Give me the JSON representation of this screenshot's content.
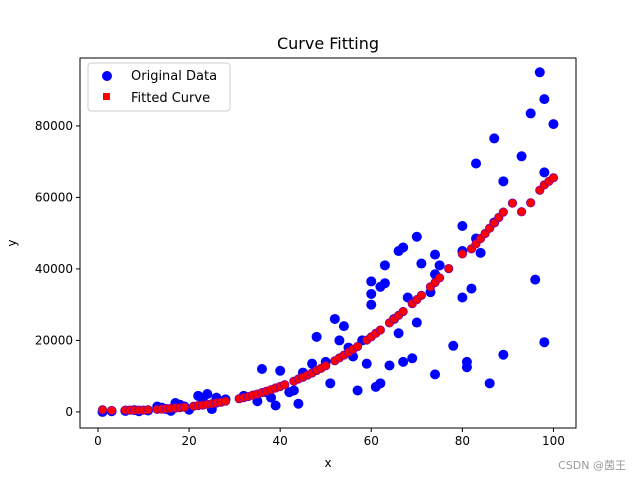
{
  "chart_data": {
    "type": "scatter",
    "title": "Curve Fitting",
    "xlabel": "x",
    "ylabel": "y",
    "xlim": [
      -3.95,
      104.95
    ],
    "ylim": [
      -4500,
      99000
    ],
    "xticks": [
      0,
      20,
      40,
      60,
      80,
      100
    ],
    "xtick_labels": [
      "0",
      "20",
      "40",
      "60",
      "80",
      "100"
    ],
    "yticks": [
      0,
      20000,
      40000,
      60000,
      80000
    ],
    "ytick_labels": [
      "0",
      "20000",
      "40000",
      "60000",
      "80000"
    ],
    "grid": false,
    "legend_position": "top-left",
    "series": [
      {
        "name": "Original Data",
        "marker": "circle",
        "color": "#0000ff",
        "points": [
          [
            1,
            0
          ],
          [
            3,
            200
          ],
          [
            6,
            300
          ],
          [
            8,
            500
          ],
          [
            9,
            200
          ],
          [
            11,
            400
          ],
          [
            13,
            1500
          ],
          [
            14,
            1200
          ],
          [
            15,
            800
          ],
          [
            16,
            300
          ],
          [
            17,
            2500
          ],
          [
            18,
            2000
          ],
          [
            19,
            1500
          ],
          [
            20,
            600
          ],
          [
            22,
            4500
          ],
          [
            23,
            3500
          ],
          [
            24,
            5000
          ],
          [
            25,
            800
          ],
          [
            26,
            4000
          ],
          [
            27,
            3000
          ],
          [
            28,
            3500
          ],
          [
            32,
            4500
          ],
          [
            35,
            3000
          ],
          [
            36,
            12000
          ],
          [
            37,
            5500
          ],
          [
            38,
            4000
          ],
          [
            39,
            1800
          ],
          [
            40,
            11500
          ],
          [
            42,
            5500
          ],
          [
            43,
            6000
          ],
          [
            44,
            2300
          ],
          [
            45,
            11000
          ],
          [
            47,
            13500
          ],
          [
            48,
            21000
          ],
          [
            50,
            14000
          ],
          [
            51,
            8000
          ],
          [
            52,
            26000
          ],
          [
            53,
            20000
          ],
          [
            54,
            24000
          ],
          [
            55,
            18000
          ],
          [
            56,
            15500
          ],
          [
            57,
            6000
          ],
          [
            58,
            20000
          ],
          [
            59,
            13500
          ],
          [
            60,
            36500
          ],
          [
            60,
            30000
          ],
          [
            60,
            33000
          ],
          [
            61,
            7000
          ],
          [
            62,
            8000
          ],
          [
            62,
            35000
          ],
          [
            63,
            36000
          ],
          [
            63,
            41000
          ],
          [
            64,
            13000
          ],
          [
            65,
            26000
          ],
          [
            66,
            22000
          ],
          [
            66,
            45000
          ],
          [
            67,
            14000
          ],
          [
            67,
            46000
          ],
          [
            68,
            32000
          ],
          [
            69,
            15000
          ],
          [
            70,
            49000
          ],
          [
            70,
            25000
          ],
          [
            71,
            41500
          ],
          [
            73,
            33500
          ],
          [
            74,
            10500
          ],
          [
            74,
            38500
          ],
          [
            74,
            44000
          ],
          [
            75,
            41000
          ],
          [
            78,
            18500
          ],
          [
            80,
            32000
          ],
          [
            80,
            45000
          ],
          [
            80,
            52000
          ],
          [
            81,
            14000
          ],
          [
            81,
            12500
          ],
          [
            82,
            34500
          ],
          [
            83,
            48500
          ],
          [
            83,
            69500
          ],
          [
            84,
            44500
          ],
          [
            86,
            8000
          ],
          [
            87,
            53000
          ],
          [
            87,
            76500
          ],
          [
            89,
            64500
          ],
          [
            89,
            16000
          ],
          [
            93,
            71500
          ],
          [
            95,
            83500
          ],
          [
            96,
            37000
          ],
          [
            97,
            95000
          ],
          [
            98,
            67000
          ],
          [
            98,
            87500
          ],
          [
            98,
            19500
          ],
          [
            100,
            80500
          ]
        ]
      },
      {
        "name": "Fitted Curve",
        "marker": "square",
        "color": "#ff0000",
        "edge_color": "#7a00a0",
        "points": [
          [
            1,
            600
          ],
          [
            3,
            400
          ],
          [
            6,
            500
          ],
          [
            7,
            500
          ],
          [
            8,
            500
          ],
          [
            9,
            500
          ],
          [
            10,
            500
          ],
          [
            11,
            600
          ],
          [
            13,
            700
          ],
          [
            14,
            800
          ],
          [
            15,
            900
          ],
          [
            16,
            1000
          ],
          [
            17,
            1100
          ],
          [
            18,
            1200
          ],
          [
            19,
            1300
          ],
          [
            21,
            1600
          ],
          [
            22,
            1800
          ],
          [
            23,
            1900
          ],
          [
            24,
            2100
          ],
          [
            25,
            2300
          ],
          [
            26,
            2500
          ],
          [
            27,
            2700
          ],
          [
            28,
            3000
          ],
          [
            31,
            3700
          ],
          [
            32,
            4000
          ],
          [
            33,
            4300
          ],
          [
            34,
            4700
          ],
          [
            35,
            5000
          ],
          [
            36,
            5400
          ],
          [
            37,
            5800
          ],
          [
            38,
            6200
          ],
          [
            39,
            6700
          ],
          [
            40,
            7100
          ],
          [
            41,
            7600
          ],
          [
            43,
            8600
          ],
          [
            44,
            9200
          ],
          [
            45,
            9700
          ],
          [
            46,
            10300
          ],
          [
            47,
            10900
          ],
          [
            48,
            11600
          ],
          [
            49,
            12200
          ],
          [
            50,
            12900
          ],
          [
            52,
            14300
          ],
          [
            53,
            15100
          ],
          [
            54,
            15900
          ],
          [
            55,
            16700
          ],
          [
            56,
            17500
          ],
          [
            57,
            18300
          ],
          [
            59,
            20100
          ],
          [
            60,
            21000
          ],
          [
            61,
            22000
          ],
          [
            62,
            22900
          ],
          [
            64,
            24900
          ],
          [
            65,
            26000
          ],
          [
            66,
            27000
          ],
          [
            67,
            28100
          ],
          [
            69,
            30300
          ],
          [
            70,
            31400
          ],
          [
            71,
            32600
          ],
          [
            73,
            35000
          ],
          [
            74,
            36200
          ],
          [
            75,
            37500
          ],
          [
            77,
            40100
          ],
          [
            80,
            44200
          ],
          [
            82,
            45600
          ],
          [
            83,
            47000
          ],
          [
            84,
            48500
          ],
          [
            85,
            49900
          ],
          [
            86,
            51400
          ],
          [
            87,
            52900
          ],
          [
            88,
            54400
          ],
          [
            89,
            55900
          ],
          [
            91,
            58400
          ],
          [
            93,
            56000
          ],
          [
            95,
            58500
          ],
          [
            97,
            62000
          ],
          [
            98,
            63500
          ],
          [
            99,
            64500
          ],
          [
            100,
            65500
          ]
        ]
      }
    ]
  },
  "watermark": "CSDN @茵王"
}
